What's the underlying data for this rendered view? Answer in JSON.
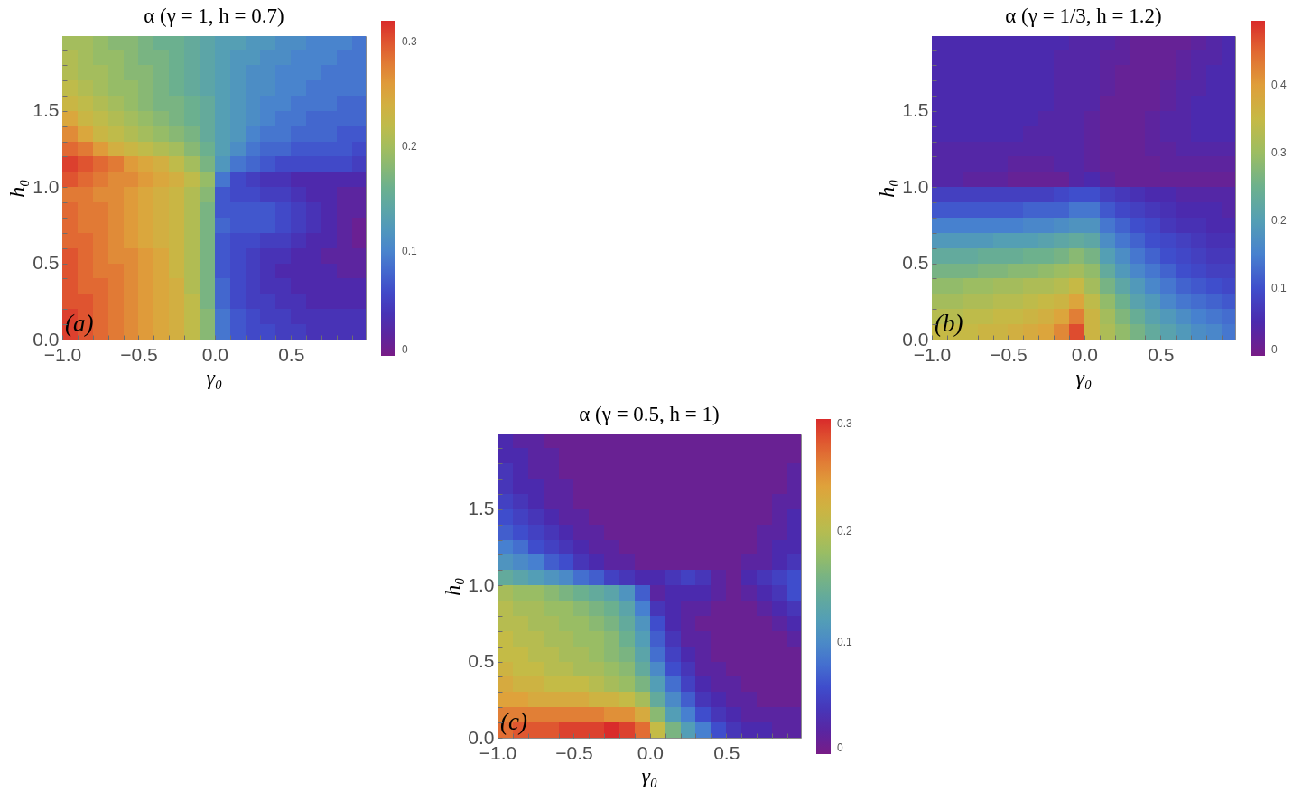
{
  "chart_data": [
    {
      "type": "heatmap",
      "title": "α (γ = 1, h = 0.7)",
      "xlabel": "γ₀",
      "ylabel": "h₀",
      "annotations": [
        "(a)"
      ],
      "x": [
        -0.95,
        -0.85,
        -0.75,
        -0.65,
        -0.55,
        -0.45,
        -0.35,
        -0.25,
        -0.15,
        -0.05,
        0.05,
        0.15,
        0.25,
        0.35,
        0.45,
        0.55,
        0.65,
        0.75,
        0.85,
        0.945
      ],
      "y": [
        1.945,
        1.85,
        1.75,
        1.65,
        1.55,
        1.45,
        1.35,
        1.25,
        1.15,
        1.05,
        0.95,
        0.85,
        0.75,
        0.65,
        0.55,
        0.45,
        0.35,
        0.25,
        0.15,
        0.05
      ],
      "xlim": [
        -1,
        0.99
      ],
      "ylim": [
        0,
        1.99
      ],
      "xticks": [
        {
          "value": -1,
          "label": "−1.0"
        },
        {
          "value": -0.9,
          "label": null
        },
        {
          "value": -0.8,
          "label": null
        },
        {
          "value": -0.7,
          "label": null
        },
        {
          "value": -0.6,
          "label": null
        },
        {
          "value": -0.5,
          "label": "−0.5"
        },
        {
          "value": -0.4,
          "label": null
        },
        {
          "value": -0.3,
          "label": null
        },
        {
          "value": -0.2,
          "label": null
        },
        {
          "value": -0.1,
          "label": null
        },
        {
          "value": 0,
          "label": "0.0"
        },
        {
          "value": 0.1,
          "label": null
        },
        {
          "value": 0.2,
          "label": null
        },
        {
          "value": 0.3,
          "label": null
        },
        {
          "value": 0.4,
          "label": null
        },
        {
          "value": 0.5,
          "label": "0.5"
        },
        {
          "value": 0.6,
          "label": null
        },
        {
          "value": 0.7,
          "label": null
        },
        {
          "value": 0.8,
          "label": null
        },
        {
          "value": 0.9,
          "label": null
        }
      ],
      "yticks": [
        {
          "value": 0,
          "label": "0.0"
        },
        {
          "value": 0.1,
          "label": null
        },
        {
          "value": 0.2,
          "label": null
        },
        {
          "value": 0.3,
          "label": null
        },
        {
          "value": 0.4,
          "label": null
        },
        {
          "value": 0.5,
          "label": "0.5"
        },
        {
          "value": 0.6,
          "label": null
        },
        {
          "value": 0.7,
          "label": null
        },
        {
          "value": 0.8,
          "label": null
        },
        {
          "value": 0.9,
          "label": null
        },
        {
          "value": 1,
          "label": "1.0"
        },
        {
          "value": 1.1,
          "label": null
        },
        {
          "value": 1.2,
          "label": null
        },
        {
          "value": 1.3,
          "label": null
        },
        {
          "value": 1.4,
          "label": null
        },
        {
          "value": 1.5,
          "label": "1.5"
        },
        {
          "value": 1.6,
          "label": null
        },
        {
          "value": 1.7,
          "label": null
        },
        {
          "value": 1.8,
          "label": null
        },
        {
          "value": 1.9,
          "label": null
        }
      ],
      "clim": [
        0,
        0.32
      ],
      "cticks": [
        0,
        0.1,
        0.2,
        0.3
      ],
      "cells": [
        [
          0.2,
          0.2,
          0.19,
          0.18,
          0.18,
          0.17,
          0.16,
          0.16,
          0.15,
          0.14,
          0.13,
          0.13,
          0.12,
          0.12,
          0.11,
          0.11,
          0.1,
          0.1,
          0.1,
          0.09
        ],
        [
          0.21,
          0.2,
          0.19,
          0.19,
          0.18,
          0.17,
          0.17,
          0.16,
          0.15,
          0.14,
          0.13,
          0.12,
          0.12,
          0.11,
          0.11,
          0.1,
          0.1,
          0.1,
          0.09,
          0.09
        ],
        [
          0.21,
          0.2,
          0.2,
          0.19,
          0.18,
          0.18,
          0.17,
          0.16,
          0.15,
          0.14,
          0.13,
          0.12,
          0.11,
          0.11,
          0.1,
          0.1,
          0.1,
          0.09,
          0.09,
          0.09
        ],
        [
          0.22,
          0.21,
          0.2,
          0.19,
          0.19,
          0.18,
          0.17,
          0.16,
          0.15,
          0.14,
          0.13,
          0.12,
          0.11,
          0.11,
          0.1,
          0.1,
          0.09,
          0.09,
          0.09,
          0.09
        ],
        [
          0.23,
          0.22,
          0.21,
          0.2,
          0.19,
          0.18,
          0.17,
          0.17,
          0.16,
          0.15,
          0.13,
          0.12,
          0.11,
          0.1,
          0.1,
          0.09,
          0.09,
          0.09,
          0.08,
          0.08
        ],
        [
          0.25,
          0.23,
          0.22,
          0.21,
          0.2,
          0.19,
          0.18,
          0.17,
          0.16,
          0.15,
          0.13,
          0.12,
          0.11,
          0.1,
          0.09,
          0.09,
          0.08,
          0.08,
          0.08,
          0.08
        ],
        [
          0.27,
          0.25,
          0.23,
          0.22,
          0.21,
          0.2,
          0.19,
          0.18,
          0.17,
          0.15,
          0.13,
          0.12,
          0.1,
          0.09,
          0.09,
          0.08,
          0.08,
          0.08,
          0.07,
          0.07
        ],
        [
          0.29,
          0.28,
          0.26,
          0.24,
          0.23,
          0.22,
          0.21,
          0.2,
          0.18,
          0.16,
          0.13,
          0.11,
          0.09,
          0.08,
          0.08,
          0.07,
          0.07,
          0.07,
          0.07,
          0.06
        ],
        [
          0.31,
          0.3,
          0.29,
          0.28,
          0.26,
          0.25,
          0.24,
          0.22,
          0.2,
          0.17,
          0.12,
          0.09,
          0.08,
          0.07,
          0.06,
          0.06,
          0.06,
          0.06,
          0.06,
          0.05
        ],
        [
          0.3,
          0.29,
          0.28,
          0.27,
          0.27,
          0.26,
          0.25,
          0.24,
          0.22,
          0.19,
          0.09,
          0.06,
          0.05,
          0.04,
          0.04,
          0.03,
          0.03,
          0.03,
          0.03,
          0.03
        ],
        [
          0.28,
          0.28,
          0.27,
          0.27,
          0.26,
          0.25,
          0.24,
          0.23,
          0.21,
          0.18,
          0.07,
          0.06,
          0.06,
          0.05,
          0.05,
          0.04,
          0.03,
          0.03,
          0.02,
          0.02
        ],
        [
          0.29,
          0.28,
          0.28,
          0.27,
          0.26,
          0.25,
          0.24,
          0.23,
          0.21,
          0.17,
          0.07,
          0.07,
          0.07,
          0.07,
          0.06,
          0.05,
          0.04,
          0.03,
          0.02,
          0.02
        ],
        [
          0.29,
          0.28,
          0.28,
          0.27,
          0.26,
          0.25,
          0.24,
          0.23,
          0.21,
          0.17,
          0.08,
          0.07,
          0.07,
          0.07,
          0.06,
          0.05,
          0.04,
          0.03,
          0.02,
          0.01
        ],
        [
          0.29,
          0.29,
          0.28,
          0.27,
          0.26,
          0.25,
          0.24,
          0.23,
          0.21,
          0.17,
          0.07,
          0.06,
          0.06,
          0.05,
          0.05,
          0.04,
          0.03,
          0.03,
          0.02,
          0.01
        ],
        [
          0.3,
          0.29,
          0.28,
          0.27,
          0.27,
          0.26,
          0.25,
          0.23,
          0.21,
          0.17,
          0.07,
          0.06,
          0.05,
          0.04,
          0.04,
          0.03,
          0.03,
          0.02,
          0.02,
          0.02
        ],
        [
          0.3,
          0.29,
          0.28,
          0.28,
          0.27,
          0.26,
          0.25,
          0.23,
          0.21,
          0.17,
          0.07,
          0.06,
          0.05,
          0.04,
          0.03,
          0.03,
          0.03,
          0.03,
          0.02,
          0.02
        ],
        [
          0.3,
          0.29,
          0.29,
          0.28,
          0.27,
          0.26,
          0.25,
          0.24,
          0.21,
          0.17,
          0.08,
          0.06,
          0.05,
          0.04,
          0.04,
          0.03,
          0.03,
          0.03,
          0.03,
          0.03
        ],
        [
          0.3,
          0.3,
          0.29,
          0.28,
          0.27,
          0.26,
          0.25,
          0.24,
          0.22,
          0.17,
          0.08,
          0.06,
          0.05,
          0.05,
          0.04,
          0.04,
          0.03,
          0.03,
          0.03,
          0.03
        ],
        [
          0.31,
          0.3,
          0.29,
          0.28,
          0.27,
          0.26,
          0.25,
          0.24,
          0.22,
          0.18,
          0.09,
          0.07,
          0.06,
          0.05,
          0.05,
          0.04,
          0.04,
          0.04,
          0.04,
          0.04
        ],
        [
          0.31,
          0.3,
          0.29,
          0.28,
          0.27,
          0.26,
          0.25,
          0.24,
          0.22,
          0.18,
          0.09,
          0.07,
          0.06,
          0.06,
          0.05,
          0.05,
          0.04,
          0.04,
          0.04,
          0.04
        ]
      ]
    },
    {
      "type": "heatmap",
      "title": "α (γ = 1/3, h = 1.2)",
      "xlabel": "γ₀",
      "ylabel": "h₀",
      "annotations": [
        "(b)"
      ],
      "x": [
        -0.95,
        -0.85,
        -0.75,
        -0.65,
        -0.55,
        -0.45,
        -0.35,
        -0.25,
        -0.15,
        -0.05,
        0.05,
        0.15,
        0.25,
        0.35,
        0.45,
        0.55,
        0.65,
        0.75,
        0.85,
        0.945
      ],
      "y": [
        1.945,
        1.85,
        1.75,
        1.65,
        1.55,
        1.45,
        1.35,
        1.25,
        1.15,
        1.05,
        0.95,
        0.85,
        0.75,
        0.65,
        0.55,
        0.45,
        0.35,
        0.25,
        0.15,
        0.05
      ],
      "xlim": [
        -1,
        0.99
      ],
      "ylim": [
        0,
        1.99
      ],
      "xticks": [
        {
          "value": -1,
          "label": "−1.0"
        },
        {
          "value": -0.9,
          "label": null
        },
        {
          "value": -0.8,
          "label": null
        },
        {
          "value": -0.7,
          "label": null
        },
        {
          "value": -0.6,
          "label": null
        },
        {
          "value": -0.5,
          "label": "−0.5"
        },
        {
          "value": -0.4,
          "label": null
        },
        {
          "value": -0.3,
          "label": null
        },
        {
          "value": -0.2,
          "label": null
        },
        {
          "value": -0.1,
          "label": null
        },
        {
          "value": 0,
          "label": "0.0"
        },
        {
          "value": 0.1,
          "label": null
        },
        {
          "value": 0.2,
          "label": null
        },
        {
          "value": 0.3,
          "label": null
        },
        {
          "value": 0.4,
          "label": null
        },
        {
          "value": 0.5,
          "label": "0.5"
        },
        {
          "value": 0.6,
          "label": null
        },
        {
          "value": 0.7,
          "label": null
        },
        {
          "value": 0.8,
          "label": null
        },
        {
          "value": 0.9,
          "label": null
        }
      ],
      "yticks": [
        {
          "value": 0,
          "label": "0.0"
        },
        {
          "value": 0.1,
          "label": null
        },
        {
          "value": 0.2,
          "label": null
        },
        {
          "value": 0.3,
          "label": null
        },
        {
          "value": 0.4,
          "label": null
        },
        {
          "value": 0.5,
          "label": "0.5"
        },
        {
          "value": 0.6,
          "label": null
        },
        {
          "value": 0.7,
          "label": null
        },
        {
          "value": 0.8,
          "label": null
        },
        {
          "value": 0.9,
          "label": null
        },
        {
          "value": 1,
          "label": "1.0"
        },
        {
          "value": 1.1,
          "label": null
        },
        {
          "value": 1.2,
          "label": null
        },
        {
          "value": 1.3,
          "label": null
        },
        {
          "value": 1.4,
          "label": null
        },
        {
          "value": 1.5,
          "label": "1.5"
        },
        {
          "value": 1.6,
          "label": null
        },
        {
          "value": 1.7,
          "label": null
        },
        {
          "value": 1.8,
          "label": null
        },
        {
          "value": 1.9,
          "label": null
        }
      ],
      "clim": [
        0,
        0.495
      ],
      "cticks": [
        0,
        0.1,
        0.2,
        0.3,
        0.4
      ],
      "cells": [
        [
          0.05,
          0.05,
          0.05,
          0.05,
          0.05,
          0.05,
          0.05,
          0.05,
          0.05,
          0.04,
          0.04,
          0.04,
          0.03,
          0.02,
          0.02,
          0.02,
          0.02,
          0.03,
          0.04,
          0.05
        ],
        [
          0.05,
          0.05,
          0.05,
          0.05,
          0.05,
          0.05,
          0.05,
          0.05,
          0.04,
          0.04,
          0.04,
          0.03,
          0.03,
          0.02,
          0.02,
          0.02,
          0.03,
          0.04,
          0.04,
          0.05
        ],
        [
          0.05,
          0.05,
          0.05,
          0.05,
          0.05,
          0.05,
          0.05,
          0.05,
          0.04,
          0.04,
          0.04,
          0.03,
          0.02,
          0.02,
          0.02,
          0.02,
          0.03,
          0.04,
          0.05,
          0.05
        ],
        [
          0.05,
          0.05,
          0.05,
          0.05,
          0.05,
          0.05,
          0.05,
          0.05,
          0.04,
          0.04,
          0.04,
          0.03,
          0.02,
          0.02,
          0.02,
          0.03,
          0.04,
          0.04,
          0.05,
          0.05
        ],
        [
          0.05,
          0.05,
          0.05,
          0.05,
          0.05,
          0.05,
          0.05,
          0.05,
          0.04,
          0.04,
          0.04,
          0.02,
          0.02,
          0.02,
          0.02,
          0.03,
          0.04,
          0.05,
          0.05,
          0.05
        ],
        [
          0.05,
          0.05,
          0.05,
          0.05,
          0.05,
          0.05,
          0.05,
          0.04,
          0.04,
          0.04,
          0.03,
          0.02,
          0.02,
          0.02,
          0.03,
          0.04,
          0.04,
          0.05,
          0.05,
          0.05
        ],
        [
          0.05,
          0.05,
          0.05,
          0.05,
          0.05,
          0.05,
          0.04,
          0.04,
          0.04,
          0.04,
          0.03,
          0.02,
          0.02,
          0.02,
          0.03,
          0.04,
          0.04,
          0.05,
          0.05,
          0.05
        ],
        [
          0.04,
          0.04,
          0.04,
          0.04,
          0.04,
          0.04,
          0.04,
          0.04,
          0.04,
          0.04,
          0.03,
          0.02,
          0.02,
          0.02,
          0.03,
          0.03,
          0.04,
          0.04,
          0.04,
          0.04
        ],
        [
          0.04,
          0.04,
          0.04,
          0.04,
          0.04,
          0.03,
          0.03,
          0.03,
          0.04,
          0.04,
          0.03,
          0.02,
          0.02,
          0.02,
          0.02,
          0.03,
          0.03,
          0.03,
          0.03,
          0.03
        ],
        [
          0.04,
          0.04,
          0.03,
          0.03,
          0.03,
          0.02,
          0.02,
          0.02,
          0.02,
          0.04,
          0.05,
          0.03,
          0.02,
          0.02,
          0.02,
          0.02,
          0.02,
          0.02,
          0.02,
          0.02
        ],
        [
          0.08,
          0.08,
          0.08,
          0.08,
          0.08,
          0.08,
          0.08,
          0.08,
          0.09,
          0.1,
          0.1,
          0.08,
          0.07,
          0.06,
          0.05,
          0.05,
          0.04,
          0.04,
          0.04,
          0.04
        ],
        [
          0.11,
          0.11,
          0.11,
          0.11,
          0.11,
          0.11,
          0.12,
          0.12,
          0.12,
          0.14,
          0.14,
          0.11,
          0.09,
          0.08,
          0.07,
          0.06,
          0.05,
          0.05,
          0.05,
          0.04
        ],
        [
          0.15,
          0.15,
          0.15,
          0.15,
          0.15,
          0.15,
          0.16,
          0.16,
          0.17,
          0.18,
          0.18,
          0.14,
          0.12,
          0.1,
          0.09,
          0.07,
          0.06,
          0.06,
          0.05,
          0.05
        ],
        [
          0.19,
          0.19,
          0.19,
          0.19,
          0.2,
          0.2,
          0.2,
          0.21,
          0.22,
          0.23,
          0.22,
          0.17,
          0.14,
          0.12,
          0.1,
          0.09,
          0.08,
          0.07,
          0.06,
          0.06
        ],
        [
          0.23,
          0.23,
          0.23,
          0.24,
          0.24,
          0.24,
          0.25,
          0.25,
          0.26,
          0.28,
          0.26,
          0.2,
          0.17,
          0.14,
          0.12,
          0.1,
          0.09,
          0.08,
          0.07,
          0.07
        ],
        [
          0.26,
          0.26,
          0.26,
          0.27,
          0.27,
          0.28,
          0.28,
          0.29,
          0.3,
          0.31,
          0.29,
          0.23,
          0.19,
          0.16,
          0.14,
          0.12,
          0.1,
          0.09,
          0.08,
          0.08
        ],
        [
          0.29,
          0.29,
          0.3,
          0.3,
          0.31,
          0.31,
          0.32,
          0.32,
          0.33,
          0.35,
          0.31,
          0.26,
          0.22,
          0.19,
          0.16,
          0.14,
          0.12,
          0.11,
          0.1,
          0.09
        ],
        [
          0.31,
          0.31,
          0.32,
          0.32,
          0.33,
          0.33,
          0.34,
          0.35,
          0.36,
          0.39,
          0.34,
          0.29,
          0.25,
          0.21,
          0.19,
          0.16,
          0.14,
          0.13,
          0.12,
          0.11
        ],
        [
          0.33,
          0.33,
          0.34,
          0.34,
          0.35,
          0.35,
          0.36,
          0.37,
          0.39,
          0.43,
          0.36,
          0.31,
          0.27,
          0.24,
          0.21,
          0.19,
          0.17,
          0.15,
          0.14,
          0.13
        ],
        [
          0.35,
          0.35,
          0.35,
          0.36,
          0.36,
          0.37,
          0.38,
          0.39,
          0.42,
          0.47,
          0.36,
          0.32,
          0.29,
          0.26,
          0.23,
          0.21,
          0.19,
          0.17,
          0.16,
          0.14
        ]
      ]
    },
    {
      "type": "heatmap",
      "title": "α (γ = 0.5, h = 1)",
      "xlabel": "γ₀",
      "ylabel": "h₀",
      "annotations": [
        "(c)"
      ],
      "x": [
        -0.95,
        -0.85,
        -0.75,
        -0.65,
        -0.55,
        -0.45,
        -0.35,
        -0.25,
        -0.15,
        -0.05,
        0.05,
        0.15,
        0.25,
        0.35,
        0.45,
        0.55,
        0.65,
        0.75,
        0.85,
        0.945
      ],
      "y": [
        1.945,
        1.85,
        1.75,
        1.65,
        1.55,
        1.45,
        1.35,
        1.25,
        1.15,
        1.05,
        0.95,
        0.85,
        0.75,
        0.65,
        0.55,
        0.45,
        0.35,
        0.25,
        0.15,
        0.05
      ],
      "xlim": [
        -1,
        0.99
      ],
      "ylim": [
        0,
        1.99
      ],
      "xticks": [
        {
          "value": -1,
          "label": "−1.0"
        },
        {
          "value": -0.9,
          "label": null
        },
        {
          "value": -0.8,
          "label": null
        },
        {
          "value": -0.7,
          "label": null
        },
        {
          "value": -0.6,
          "label": null
        },
        {
          "value": -0.5,
          "label": "−0.5"
        },
        {
          "value": -0.4,
          "label": null
        },
        {
          "value": -0.3,
          "label": null
        },
        {
          "value": -0.2,
          "label": null
        },
        {
          "value": -0.1,
          "label": null
        },
        {
          "value": 0,
          "label": "0.0"
        },
        {
          "value": 0.1,
          "label": null
        },
        {
          "value": 0.2,
          "label": null
        },
        {
          "value": 0.3,
          "label": null
        },
        {
          "value": 0.4,
          "label": null
        },
        {
          "value": 0.5,
          "label": "0.5"
        },
        {
          "value": 0.6,
          "label": null
        },
        {
          "value": 0.7,
          "label": null
        },
        {
          "value": 0.8,
          "label": null
        },
        {
          "value": 0.9,
          "label": null
        }
      ],
      "yticks": [
        {
          "value": 0,
          "label": "0.0"
        },
        {
          "value": 0.1,
          "label": null
        },
        {
          "value": 0.2,
          "label": null
        },
        {
          "value": 0.3,
          "label": null
        },
        {
          "value": 0.4,
          "label": null
        },
        {
          "value": 0.5,
          "label": "0.5"
        },
        {
          "value": 0.6,
          "label": null
        },
        {
          "value": 0.7,
          "label": null
        },
        {
          "value": 0.8,
          "label": null
        },
        {
          "value": 0.9,
          "label": null
        },
        {
          "value": 1,
          "label": "1.0"
        },
        {
          "value": 1.1,
          "label": null
        },
        {
          "value": 1.2,
          "label": null
        },
        {
          "value": 1.3,
          "label": null
        },
        {
          "value": 1.4,
          "label": null
        },
        {
          "value": 1.5,
          "label": "1.5"
        },
        {
          "value": 1.6,
          "label": null
        },
        {
          "value": 1.7,
          "label": null
        },
        {
          "value": 1.8,
          "label": null
        },
        {
          "value": 1.9,
          "label": null
        }
      ],
      "clim": [
        0,
        0.3
      ],
      "cticks": [
        0,
        0.1,
        0.2,
        0.3
      ],
      "cells": [
        [
          0.03,
          0.02,
          0.02,
          0.01,
          0.01,
          0.01,
          0.01,
          0.01,
          0.01,
          0.01,
          0.01,
          0.01,
          0.01,
          0.01,
          0.01,
          0.01,
          0.01,
          0.01,
          0.01,
          0.01
        ],
        [
          0.03,
          0.03,
          0.02,
          0.02,
          0.01,
          0.01,
          0.01,
          0.01,
          0.01,
          0.01,
          0.01,
          0.01,
          0.01,
          0.01,
          0.01,
          0.01,
          0.01,
          0.01,
          0.01,
          0.01
        ],
        [
          0.04,
          0.03,
          0.02,
          0.02,
          0.01,
          0.01,
          0.01,
          0.01,
          0.01,
          0.01,
          0.01,
          0.01,
          0.01,
          0.01,
          0.01,
          0.01,
          0.01,
          0.01,
          0.01,
          0.02
        ],
        [
          0.04,
          0.03,
          0.03,
          0.02,
          0.02,
          0.01,
          0.01,
          0.01,
          0.01,
          0.01,
          0.01,
          0.01,
          0.01,
          0.01,
          0.01,
          0.01,
          0.01,
          0.01,
          0.01,
          0.02
        ],
        [
          0.05,
          0.04,
          0.03,
          0.02,
          0.02,
          0.01,
          0.01,
          0.01,
          0.01,
          0.01,
          0.01,
          0.01,
          0.01,
          0.01,
          0.01,
          0.01,
          0.01,
          0.01,
          0.02,
          0.02
        ],
        [
          0.06,
          0.05,
          0.04,
          0.03,
          0.02,
          0.02,
          0.01,
          0.01,
          0.01,
          0.01,
          0.01,
          0.01,
          0.01,
          0.01,
          0.01,
          0.01,
          0.01,
          0.01,
          0.02,
          0.03
        ],
        [
          0.07,
          0.06,
          0.05,
          0.04,
          0.03,
          0.02,
          0.02,
          0.01,
          0.01,
          0.01,
          0.01,
          0.01,
          0.01,
          0.01,
          0.01,
          0.01,
          0.01,
          0.02,
          0.02,
          0.03
        ],
        [
          0.09,
          0.08,
          0.06,
          0.05,
          0.04,
          0.03,
          0.02,
          0.02,
          0.01,
          0.01,
          0.01,
          0.01,
          0.01,
          0.01,
          0.01,
          0.01,
          0.01,
          0.02,
          0.03,
          0.03
        ],
        [
          0.11,
          0.1,
          0.09,
          0.07,
          0.06,
          0.04,
          0.03,
          0.02,
          0.02,
          0.01,
          0.01,
          0.01,
          0.01,
          0.01,
          0.01,
          0.01,
          0.02,
          0.02,
          0.03,
          0.04
        ],
        [
          0.14,
          0.13,
          0.12,
          0.11,
          0.1,
          0.08,
          0.07,
          0.05,
          0.04,
          0.03,
          0.03,
          0.04,
          0.05,
          0.04,
          0.02,
          0.01,
          0.03,
          0.04,
          0.05,
          0.06
        ],
        [
          0.19,
          0.18,
          0.18,
          0.17,
          0.16,
          0.15,
          0.14,
          0.13,
          0.11,
          0.07,
          0.02,
          0.03,
          0.03,
          0.03,
          0.02,
          0.01,
          0.02,
          0.03,
          0.04,
          0.06
        ],
        [
          0.2,
          0.19,
          0.19,
          0.18,
          0.18,
          0.17,
          0.16,
          0.15,
          0.13,
          0.09,
          0.04,
          0.03,
          0.02,
          0.02,
          0.01,
          0.01,
          0.01,
          0.02,
          0.03,
          0.04
        ],
        [
          0.2,
          0.2,
          0.19,
          0.19,
          0.18,
          0.18,
          0.17,
          0.16,
          0.14,
          0.11,
          0.06,
          0.03,
          0.02,
          0.01,
          0.01,
          0.01,
          0.01,
          0.01,
          0.02,
          0.03
        ],
        [
          0.21,
          0.2,
          0.2,
          0.19,
          0.19,
          0.18,
          0.18,
          0.17,
          0.15,
          0.12,
          0.07,
          0.04,
          0.02,
          0.02,
          0.01,
          0.01,
          0.01,
          0.01,
          0.01,
          0.02
        ],
        [
          0.21,
          0.21,
          0.2,
          0.2,
          0.19,
          0.19,
          0.18,
          0.17,
          0.16,
          0.13,
          0.08,
          0.05,
          0.03,
          0.02,
          0.01,
          0.01,
          0.01,
          0.01,
          0.01,
          0.01
        ],
        [
          0.22,
          0.21,
          0.21,
          0.2,
          0.2,
          0.19,
          0.19,
          0.18,
          0.17,
          0.14,
          0.1,
          0.06,
          0.04,
          0.02,
          0.02,
          0.01,
          0.01,
          0.01,
          0.01,
          0.01
        ],
        [
          0.23,
          0.22,
          0.22,
          0.21,
          0.21,
          0.21,
          0.2,
          0.19,
          0.18,
          0.16,
          0.12,
          0.08,
          0.05,
          0.03,
          0.02,
          0.02,
          0.01,
          0.01,
          0.01,
          0.01
        ],
        [
          0.24,
          0.24,
          0.23,
          0.23,
          0.23,
          0.23,
          0.22,
          0.22,
          0.21,
          0.19,
          0.14,
          0.1,
          0.07,
          0.04,
          0.03,
          0.02,
          0.02,
          0.01,
          0.01,
          0.01
        ],
        [
          0.26,
          0.26,
          0.26,
          0.26,
          0.26,
          0.26,
          0.26,
          0.25,
          0.25,
          0.23,
          0.17,
          0.12,
          0.09,
          0.06,
          0.04,
          0.03,
          0.02,
          0.02,
          0.02,
          0.02
        ],
        [
          0.27,
          0.28,
          0.28,
          0.28,
          0.29,
          0.29,
          0.29,
          0.3,
          0.29,
          0.27,
          0.21,
          0.16,
          0.12,
          0.09,
          0.06,
          0.04,
          0.03,
          0.03,
          0.02,
          0.02
        ]
      ]
    }
  ]
}
